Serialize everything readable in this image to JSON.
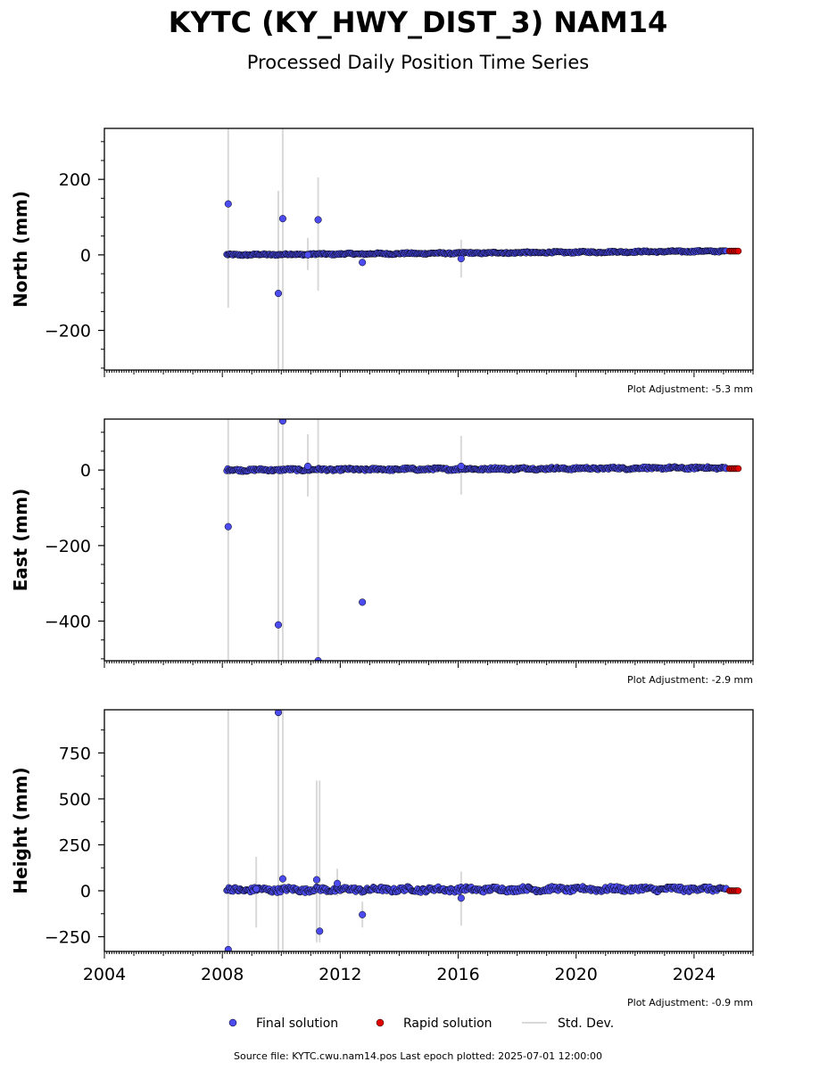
{
  "page": {
    "title": "KYTC (KY_HWY_DIST_3) NAM14",
    "subtitle": "Processed Daily Position Time Series",
    "source_line": "Source file: KYTC.cwu.nam14.pos  Last epoch plotted: 2025-07-01 12:00:00"
  },
  "legend": {
    "items": [
      {
        "label": "Final solution",
        "kind": "marker",
        "color": "#4b4bef"
      },
      {
        "label": "Rapid solution",
        "kind": "marker",
        "color": "#e00000"
      },
      {
        "label": "Std. Dev.",
        "kind": "line",
        "color": "#d9d9d9"
      }
    ]
  },
  "colors": {
    "final": "#4b4bef",
    "rapid": "#e00000",
    "stddev": "#d9d9d9",
    "axis": "#000000"
  },
  "chart_data": [
    {
      "type": "scatter",
      "ylabel": "North (mm)",
      "adjustment": "Plot Adjustment: -5.3 mm",
      "xlim": [
        2004.0,
        2026.0
      ],
      "ylim": [
        -305,
        335
      ],
      "yticks": [
        -200,
        0,
        200
      ],
      "yminor_step": 50,
      "show_xticklabels": false,
      "trend": {
        "x0": 2008.15,
        "y0": 0,
        "x1": 2025.1,
        "y1": 10,
        "amp": 2
      },
      "rapid": {
        "x0": 2025.2,
        "x1": 2025.5,
        "y": 10
      },
      "outliers": [
        {
          "x": 2008.2,
          "y": 135,
          "err_low": -140,
          "err_high": 335
        },
        {
          "x": 2009.9,
          "y": -102,
          "err_low": -305,
          "err_high": 170
        },
        {
          "x": 2010.05,
          "y": 96,
          "err_low": -305,
          "err_high": 335
        },
        {
          "x": 2011.25,
          "y": 93,
          "err_low": -95,
          "err_high": 205
        },
        {
          "x": 2012.75,
          "y": -20,
          "err_low": -20,
          "err_high": -20
        },
        {
          "x": 2016.1,
          "y": -10,
          "err_low": -60,
          "err_high": 40
        },
        {
          "x": 2010.9,
          "y": 0,
          "err_low": -40,
          "err_high": 45
        }
      ]
    },
    {
      "type": "scatter",
      "ylabel": "East (mm)",
      "adjustment": "Plot Adjustment: -2.9 mm",
      "xlim": [
        2004.0,
        2026.0
      ],
      "ylim": [
        -505,
        135
      ],
      "yticks": [
        -400,
        -200,
        0
      ],
      "yminor_step": 50,
      "show_xticklabels": false,
      "trend": {
        "x0": 2008.15,
        "y0": 0,
        "x1": 2025.1,
        "y1": 6,
        "amp": 3
      },
      "rapid": {
        "x0": 2025.2,
        "x1": 2025.5,
        "y": 4
      },
      "outliers": [
        {
          "x": 2008.2,
          "y": -150,
          "err_low": -505,
          "err_high": 135
        },
        {
          "x": 2009.9,
          "y": -410,
          "err_low": -505,
          "err_high": 135
        },
        {
          "x": 2010.05,
          "y": 130,
          "err_low": -505,
          "err_high": 135
        },
        {
          "x": 2011.25,
          "y": -505,
          "err_low": -505,
          "err_high": 135
        },
        {
          "x": 2012.75,
          "y": -350,
          "err_low": -350,
          "err_high": -350
        },
        {
          "x": 2016.1,
          "y": 10,
          "err_low": -65,
          "err_high": 90
        },
        {
          "x": 2010.9,
          "y": 10,
          "err_low": -70,
          "err_high": 95
        }
      ]
    },
    {
      "type": "scatter",
      "ylabel": "Height (mm)",
      "adjustment": "Plot Adjustment: -0.9 mm",
      "xlim": [
        2004.0,
        2026.0
      ],
      "ylim": [
        -330,
        985
      ],
      "yticks": [
        -250,
        0,
        250,
        500,
        750
      ],
      "yminor_step": 125,
      "xticks": [
        2004,
        2008,
        2012,
        2016,
        2020,
        2024
      ],
      "show_xticklabels": true,
      "trend": {
        "x0": 2008.15,
        "y0": 5,
        "x1": 2025.1,
        "y1": 10,
        "amp": 12
      },
      "rapid": {
        "x0": 2025.2,
        "x1": 2025.5,
        "y": 0
      },
      "outliers": [
        {
          "x": 2008.2,
          "y": -320,
          "err_low": -330,
          "err_high": 985
        },
        {
          "x": 2009.9,
          "y": 970,
          "err_low": -330,
          "err_high": 985
        },
        {
          "x": 2010.05,
          "y": 65,
          "err_low": -330,
          "err_high": 985
        },
        {
          "x": 2011.2,
          "y": 60,
          "err_low": -280,
          "err_high": 600
        },
        {
          "x": 2011.3,
          "y": -220,
          "err_low": -280,
          "err_high": 600
        },
        {
          "x": 2012.75,
          "y": -130,
          "err_low": -200,
          "err_high": -60
        },
        {
          "x": 2016.1,
          "y": -40,
          "err_low": -190,
          "err_high": 105
        },
        {
          "x": 2011.9,
          "y": 40,
          "err_low": -30,
          "err_high": 120
        },
        {
          "x": 2009.15,
          "y": 10,
          "err_low": -200,
          "err_high": 185
        }
      ]
    }
  ]
}
